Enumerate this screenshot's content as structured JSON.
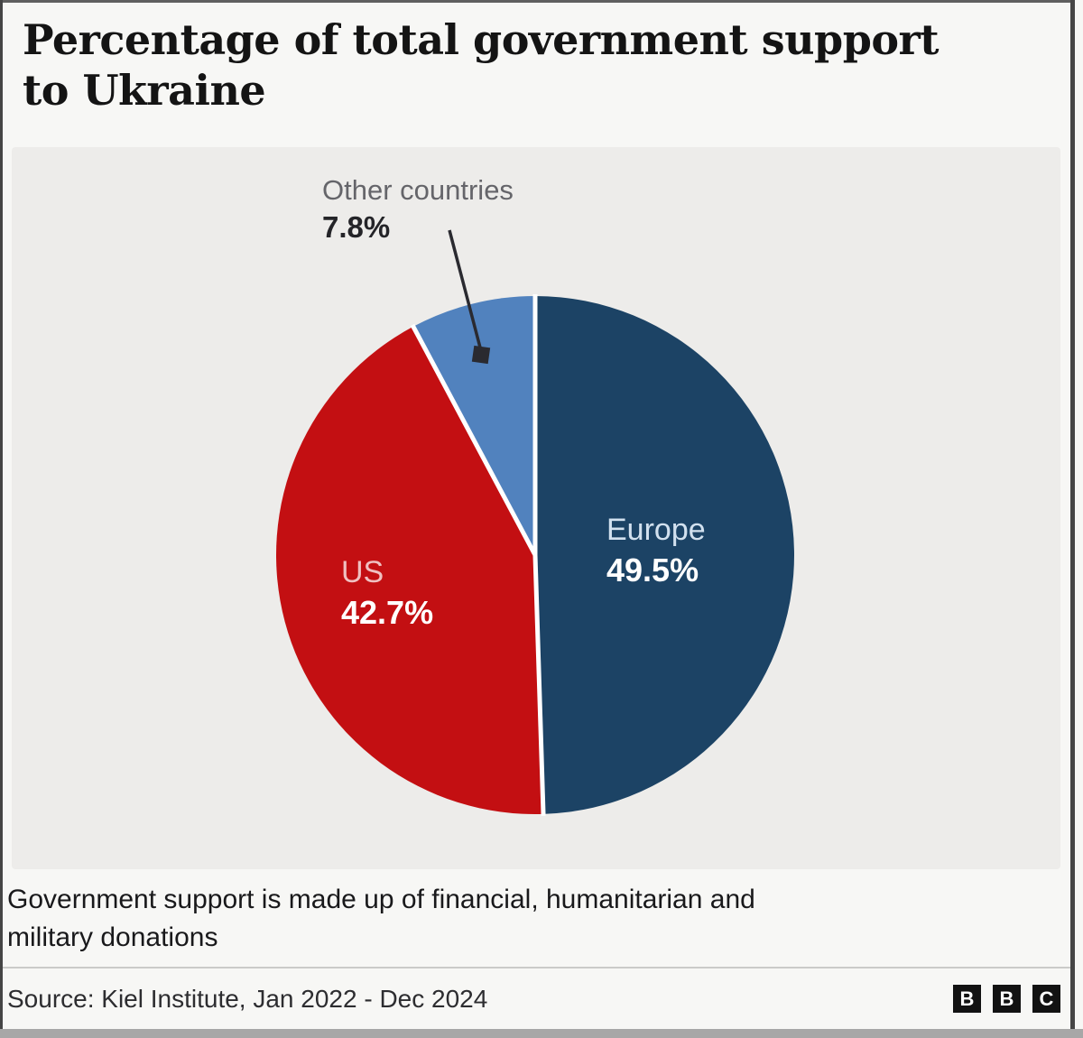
{
  "header": {
    "title_lines": [
      "Percentage of total government support",
      "to Ukraine"
    ]
  },
  "chart_data": {
    "type": "pie",
    "title": "Percentage of total government support to Ukraine",
    "slices": [
      {
        "label": "Europe",
        "value": 49.5,
        "display": "49.5%",
        "color": "#1c4365"
      },
      {
        "label": "US",
        "value": 42.7,
        "display": "42.7%",
        "color": "#c30f12"
      },
      {
        "label": "Other countries",
        "value": 7.8,
        "display": "7.8%",
        "color": "#5182be"
      }
    ],
    "start_angle_deg": -90,
    "direction": "clockwise",
    "separator": {
      "color": "#ffffff",
      "width": 5
    },
    "label_colors": {
      "europe_name": "#d2e1ef",
      "us_name": "#f0c0c1",
      "value_text": "#ffffff",
      "other_name": "#65656a",
      "other_value": "#242428"
    },
    "callout": {
      "marker_color": "#2a2a30"
    },
    "background": "#edecea",
    "legend_position": "labels-on-slices"
  },
  "caption": {
    "lines": [
      "Government support is made up of financial, humanitarian and",
      "military donations"
    ]
  },
  "footer": {
    "source": "Source: Kiel Institute, Jan 2022 - Dec 2024",
    "logo": {
      "letters": [
        "B",
        "B",
        "C"
      ]
    }
  },
  "colors": {
    "page_background": "#f7f7f5",
    "panel_background": "#edecea",
    "title_text": "#141414",
    "caption_text": "#19191b",
    "source_text": "#2d2d30",
    "divider": "#cbcbc9",
    "frame_border": "#454545",
    "bottom_bar": "#a7a7a7",
    "logo_block": "#121212"
  }
}
